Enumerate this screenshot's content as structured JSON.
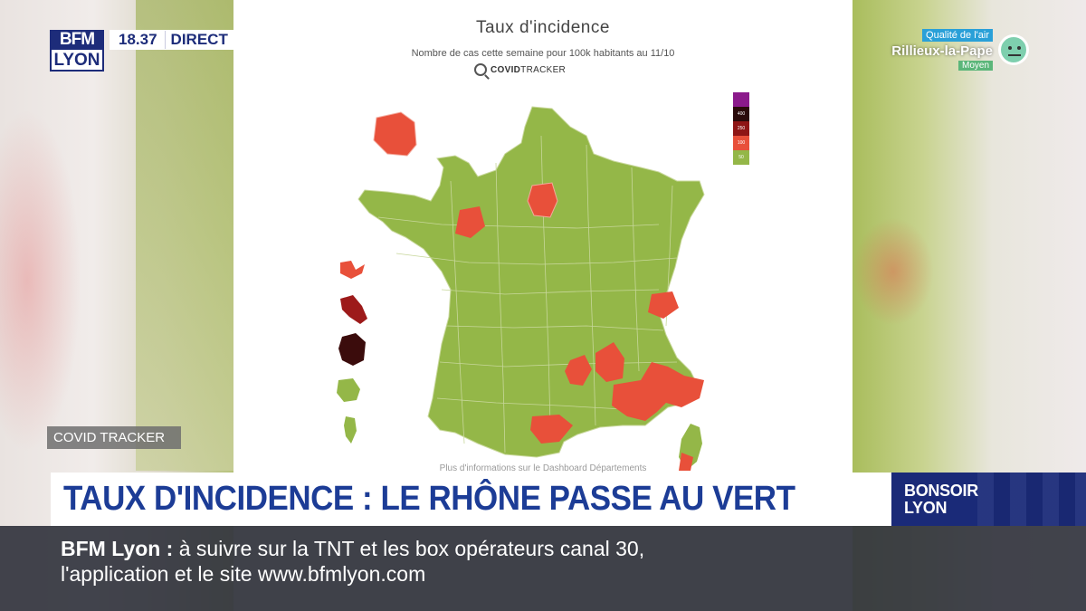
{
  "broadcast": {
    "logo_top": "BFM",
    "logo_bottom": "LYON",
    "time": "18.37",
    "live": "DIRECT"
  },
  "air_quality": {
    "title": "Qualité de l'air",
    "city": "Rillieux-la-Pape",
    "level": "Moyen"
  },
  "map_panel": {
    "title": "Taux d'incidence",
    "subtitle": "Nombre de cas cette semaine pour 100k habitants au 11/10",
    "brand_bold": "COVID",
    "brand_normal": "TRACKER",
    "legend": [
      {
        "label": "",
        "color": "#8b1a8b"
      },
      {
        "label": "400",
        "color": "#2a0a0a"
      },
      {
        "label": "250",
        "color": "#8e1616"
      },
      {
        "label": "100",
        "color": "#e8503a"
      },
      {
        "label": "50",
        "color": "#94b748"
      }
    ],
    "footer": "Plus d'informations sur le Dashboard Départements"
  },
  "colors": {
    "green": "#94b748",
    "red": "#e8503a",
    "dark_red": "#9d1a1a",
    "maroon": "#3b0c0c",
    "banner_blue": "#1c3c96"
  },
  "source_tag": "COVID TRACKER",
  "headline": "TAUX D'INCIDENCE : LE RHÔNE PASSE AU VERT",
  "show": {
    "line1": "BONSOIR",
    "line2": "LYON"
  },
  "ticker": {
    "brand": "BFM Lyon :",
    "line1": " à suivre sur la TNT et les box opérateurs canal 30,",
    "line2": "l'application et le site www.bfmlyon.com"
  }
}
